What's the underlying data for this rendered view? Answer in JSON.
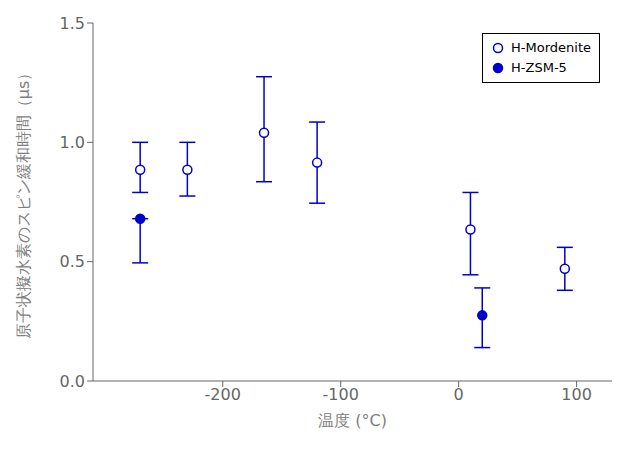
{
  "chart_data": {
    "type": "scatter",
    "xlabel": "温度 (°C)",
    "ylabel": "原子状擬水素のスピン緩和時間（μs）",
    "xlim": [
      -310,
      130
    ],
    "ylim": [
      0.0,
      1.5
    ],
    "xticks": [
      -200,
      -100,
      0,
      100
    ],
    "yticks": [
      {
        "value": 0.0,
        "label": "0.0"
      },
      0.5,
      {
        "value": 1.0,
        "label": "1.0"
      },
      1.5
    ],
    "grid": false,
    "legend": "upper right",
    "series": [
      {
        "name": "H-Mordenite",
        "color": "#0000cc",
        "marker": "open_circle",
        "x": [
          -270,
          -230,
          -165,
          -120,
          10,
          90
        ],
        "values": [
          0.885,
          0.885,
          1.04,
          0.915,
          0.635,
          0.47
        ],
        "yerr_lo": [
          0.095,
          0.11,
          0.205,
          0.17,
          0.19,
          0.09
        ],
        "yerr_hi": [
          0.115,
          0.115,
          0.235,
          0.17,
          0.155,
          0.09
        ]
      },
      {
        "name": "H-ZSM-5",
        "color": "#0000cc",
        "marker": "circle",
        "x": [
          -270,
          20
        ],
        "values": [
          0.68,
          0.275
        ],
        "yerr_lo": [
          0.185,
          0.135
        ],
        "yerr_hi": [
          0.0,
          0.115
        ]
      }
    ]
  }
}
